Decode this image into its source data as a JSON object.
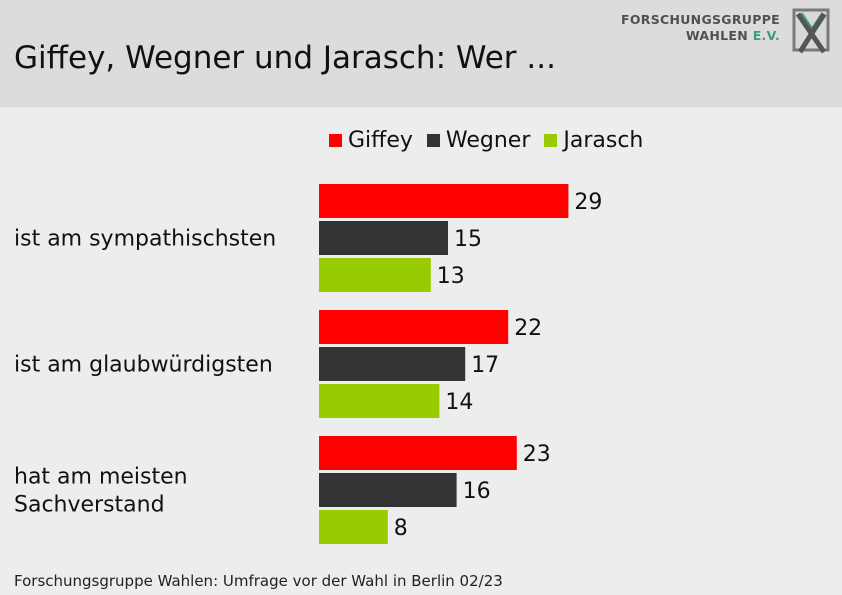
{
  "header": {
    "title": "Giffey, Wegner und Jarasch: Wer ...",
    "logo": {
      "line1": "FORSCHUNGSGRUPPE",
      "line2_a": "WAHLEN ",
      "line2_b": "E.V."
    }
  },
  "footer": {
    "source": "Forschungsgruppe Wahlen: Umfrage vor der Wahl in Berlin 02/23"
  },
  "colors": {
    "giffey": "#ff0000",
    "wegner": "#333333",
    "jarasch": "#99cc00"
  },
  "chart_data": {
    "type": "bar",
    "orientation": "horizontal",
    "categories": [
      "ist am sympathischsten",
      "ist am glaubwürdigsten",
      "hat am meisten Sachverstand"
    ],
    "series": [
      {
        "name": "Giffey",
        "color": "#ff0000",
        "values": [
          29,
          22,
          23
        ]
      },
      {
        "name": "Wegner",
        "color": "#333333",
        "values": [
          15,
          17,
          16
        ]
      },
      {
        "name": "Jarasch",
        "color": "#99cc00",
        "values": [
          13,
          14,
          8
        ]
      }
    ],
    "xlim": [
      0,
      30
    ],
    "grid": false,
    "legend": "top"
  }
}
